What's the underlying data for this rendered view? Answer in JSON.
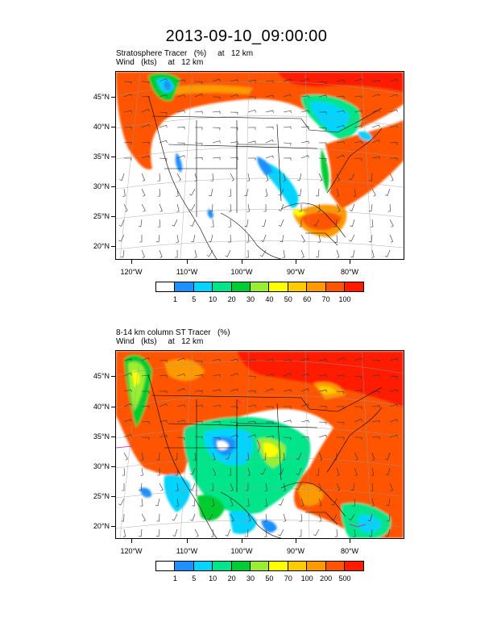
{
  "title": "2013-09-10_09:00:00",
  "panels": [
    {
      "id": "top",
      "label_line1": "Stratosphere Tracer   (%)     at   12 km",
      "label_line2": "Wind   (kts)     at   12 km",
      "lat_labels": [
        "45°N",
        "40°N",
        "35°N",
        "30°N",
        "25°N",
        "20°N"
      ],
      "lon_labels": [
        "120°W",
        "110°W",
        "100°W",
        "90°W",
        "80°W"
      ],
      "colorbar_colors": [
        "#ffffff",
        "#1e90ff",
        "#00d4ff",
        "#00e589",
        "#00cc33",
        "#99ee33",
        "#ffff00",
        "#ffcc00",
        "#ff9900",
        "#ff5500",
        "#ff1a00"
      ],
      "colorbar_labels": [
        "1",
        "5",
        "10",
        "20",
        "30",
        "40",
        "50",
        "60",
        "70",
        "100"
      ]
    },
    {
      "id": "bottom",
      "label_line1": "8-14 km column ST Tracer   (%)",
      "label_line2": "Wind   (kts)     at   12 km",
      "lat_labels": [
        "45°N",
        "40°N",
        "35°N",
        "30°N",
        "25°N",
        "20°N"
      ],
      "lon_labels": [
        "120°W",
        "110°W",
        "100°W",
        "90°W",
        "80°W"
      ],
      "colorbar_colors": [
        "#ffffff",
        "#1e90ff",
        "#00d4ff",
        "#00e589",
        "#00cc33",
        "#99ee33",
        "#ffff00",
        "#ffcc00",
        "#ff9900",
        "#ff5500",
        "#ff1a00"
      ],
      "colorbar_labels": [
        "1",
        "5",
        "10",
        "20",
        "30",
        "50",
        "70",
        "100",
        "200",
        "500"
      ]
    }
  ]
}
